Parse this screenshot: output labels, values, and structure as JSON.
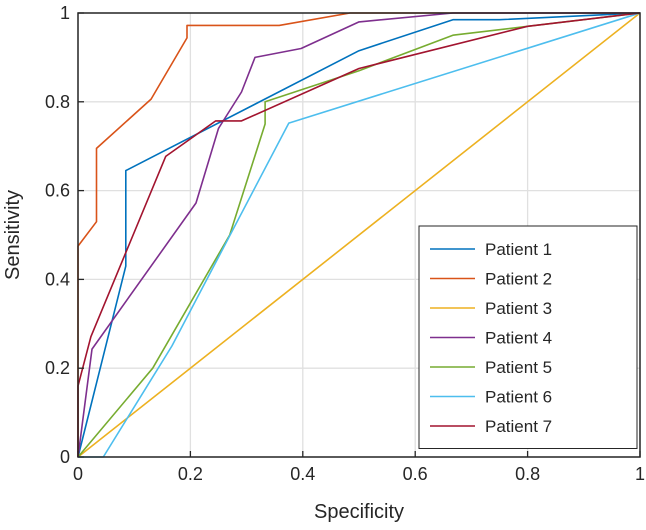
{
  "chart_data": {
    "type": "line",
    "title": "",
    "xlabel": "Specificity",
    "ylabel": "Sensitivity",
    "xlim": [
      0,
      1
    ],
    "ylim": [
      0,
      1
    ],
    "xticks": [
      0,
      0.2,
      0.4,
      0.6,
      0.8,
      1
    ],
    "yticks": [
      0,
      0.2,
      0.4,
      0.6,
      0.8,
      1
    ],
    "xtick_labels": [
      "0",
      "0.2",
      "0.4",
      "0.6",
      "0.8",
      "1"
    ],
    "ytick_labels": [
      "0",
      "0.2",
      "0.4",
      "0.6",
      "0.8",
      "1"
    ],
    "grid": true,
    "legend_position": "bottom-right",
    "series": [
      {
        "name": "Patient 1",
        "color": "#0072BD",
        "x": [
          0,
          0.085,
          0.085,
          0.5,
          0.667,
          0.75,
          1
        ],
        "y": [
          0,
          0.43,
          0.645,
          0.915,
          0.985,
          0.985,
          1
        ]
      },
      {
        "name": "Patient 2",
        "color": "#D95319",
        "x": [
          0,
          0,
          0.033,
          0.033,
          0.13,
          0.194,
          0.194,
          0.358,
          0.484,
          1
        ],
        "y": [
          0,
          0.475,
          0.53,
          0.695,
          0.806,
          0.944,
          0.972,
          0.972,
          1,
          1
        ]
      },
      {
        "name": "Patient 3",
        "color": "#EDB120",
        "x": [
          0,
          1
        ],
        "y": [
          0,
          1
        ]
      },
      {
        "name": "Patient 4",
        "color": "#7E2F8E",
        "x": [
          0,
          0.025,
          0.21,
          0.25,
          0.291,
          0.315,
          0.397,
          0.5,
          0.667,
          1
        ],
        "y": [
          0,
          0.243,
          0.572,
          0.74,
          0.822,
          0.9,
          0.92,
          0.98,
          1,
          1
        ]
      },
      {
        "name": "Patient 5",
        "color": "#77AC30",
        "x": [
          0,
          0.133,
          0.27,
          0.333,
          0.333,
          0.5,
          0.667,
          0.8,
          1
        ],
        "y": [
          0,
          0.2,
          0.5,
          0.75,
          0.8,
          0.87,
          0.95,
          0.97,
          1
        ]
      },
      {
        "name": "Patient 6",
        "color": "#4DBEEE",
        "x": [
          0,
          0.045,
          0.167,
          0.375,
          1
        ],
        "y": [
          0,
          0,
          0.25,
          0.752,
          1
        ]
      },
      {
        "name": "Patient 7",
        "color": "#A2142F",
        "x": [
          0,
          0,
          0.023,
          0.156,
          0.245,
          0.291,
          0.5,
          0.8,
          1
        ],
        "y": [
          0,
          0.16,
          0.271,
          0.677,
          0.757,
          0.757,
          0.875,
          0.97,
          1
        ]
      }
    ]
  }
}
